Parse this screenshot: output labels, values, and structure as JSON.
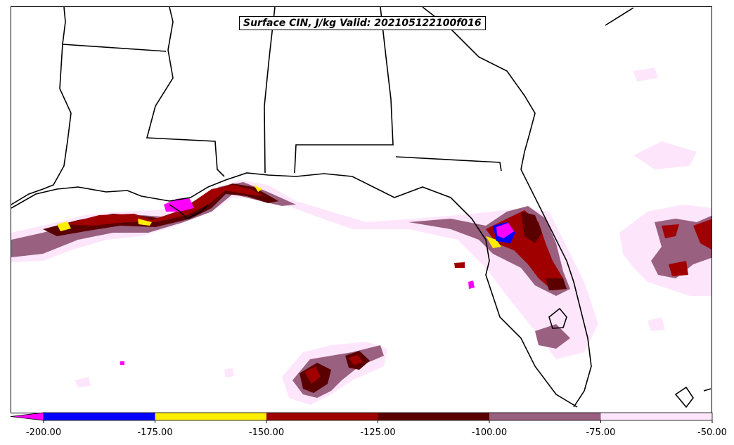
{
  "map": {
    "title": "Surface CIN, J/kg Valid: 202105122100f016",
    "background": "#ffffff",
    "boundary_color": "#000000"
  },
  "colorbar": {
    "extend": "min",
    "bins": [
      {
        "range": [
          -200,
          -175
        ],
        "color": "#0000ff"
      },
      {
        "range": [
          -175,
          -150
        ],
        "color": "#ffee00"
      },
      {
        "range": [
          -150,
          -125
        ],
        "color": "#a00000"
      },
      {
        "range": [
          -125,
          -100
        ],
        "color": "#5a0000"
      },
      {
        "range": [
          -100,
          -75
        ],
        "color": "#9a6080"
      },
      {
        "range": [
          -75,
          -50
        ],
        "color": "#fde6fb"
      }
    ],
    "under_color": "#ff00ff",
    "tick_labels": [
      "-200.00",
      "-175.00",
      "-150.00",
      "-125.00",
      "-100.00",
      "-75.00",
      "-50.00"
    ]
  }
}
